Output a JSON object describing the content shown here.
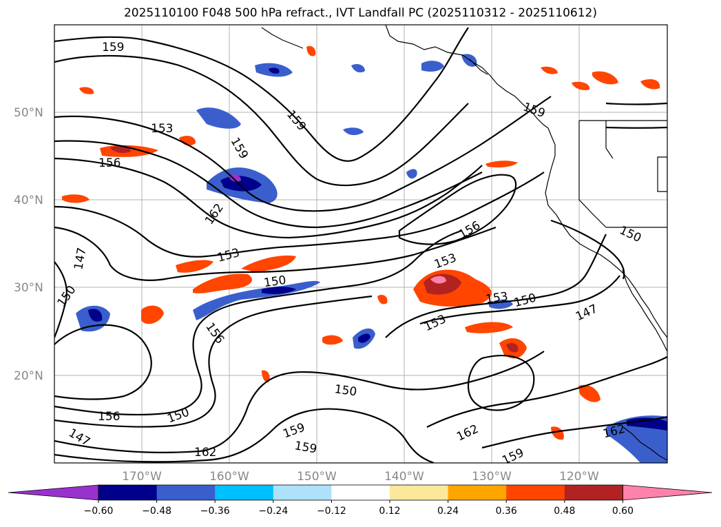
{
  "title": "2025110100 F048 500 hPa refract., IVT Landfall PC (2025110312 - 2025110612)",
  "map": {
    "lat_labels": [
      "50°N",
      "40°N",
      "30°N",
      "20°N"
    ],
    "lon_labels": [
      "170°W",
      "160°W",
      "150°W",
      "140°W",
      "130°W",
      "120°W"
    ],
    "contour_labels": [
      "159",
      "153",
      "159",
      "156",
      "159",
      "162",
      "153",
      "150",
      "153",
      "156",
      "147",
      "150",
      "150",
      "153",
      "150",
      "153",
      "156",
      "147",
      "150",
      "150",
      "159",
      "156",
      "147",
      "159",
      "162",
      "162",
      "159",
      "162",
      "159"
    ]
  },
  "colorbar": {
    "colors": [
      "#9932CC",
      "#00008B",
      "#3A5FCD",
      "#00BFFF",
      "#ADE2FA",
      "#FFFFFF",
      "#FDE79A",
      "#FFA500",
      "#FF4500",
      "#B22222",
      "#FF82AB"
    ],
    "tick_labels": [
      "−0.60",
      "−0.48",
      "−0.36",
      "−0.24",
      "−0.12",
      "0.12",
      "0.24",
      "0.36",
      "0.48",
      "0.60"
    ]
  }
}
